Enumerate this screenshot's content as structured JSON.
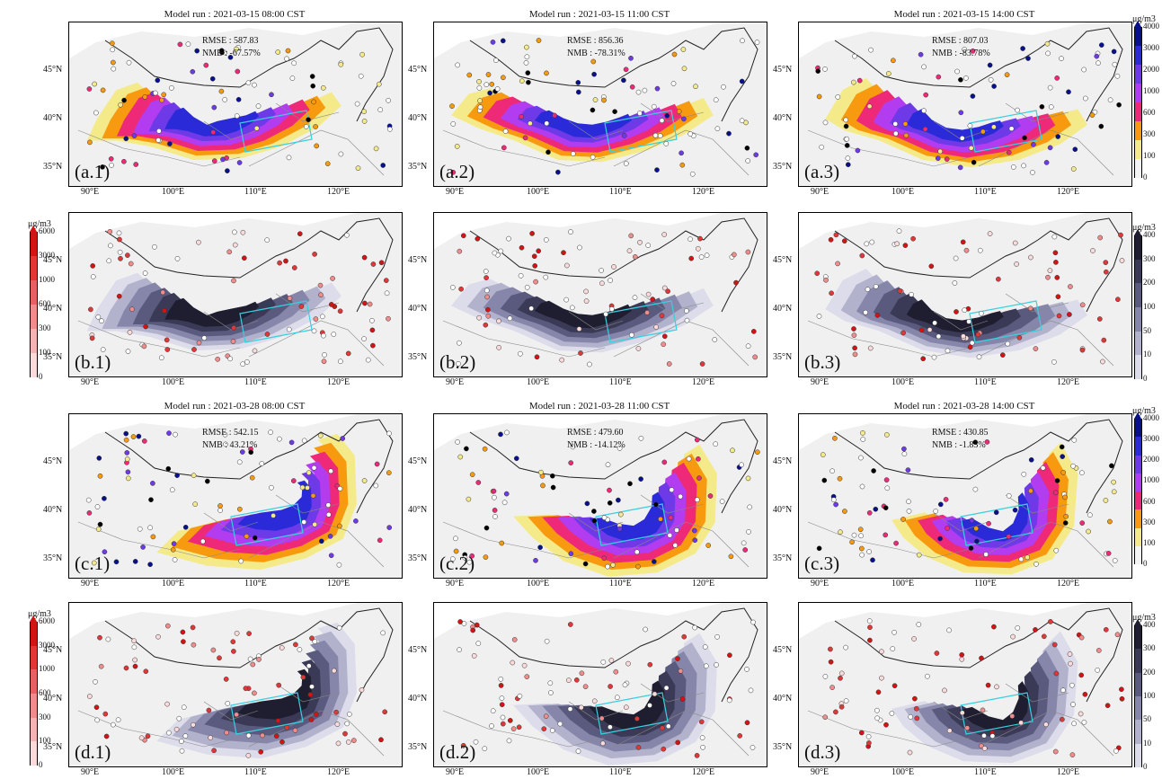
{
  "rows": [
    {
      "id": "a",
      "kind": "conc",
      "titles": [
        "Model run : 2021-03-15 08:00 CST",
        "Model run : 2021-03-15 11:00 CST",
        "Model run : 2021-03-15 14:00 CST"
      ],
      "tags": [
        "(a.1)",
        "(a.2)",
        "(a.3)"
      ],
      "rmse": [
        "RMSE : 587.83",
        "RMSE : 856.36",
        "RMSE : 807.03"
      ],
      "nmb": [
        "NMB : -67.57%",
        "NMB : -78.31%",
        "NMB : -83.78%"
      ]
    },
    {
      "id": "b",
      "kind": "dev",
      "titles": [
        "",
        "",
        ""
      ],
      "tags": [
        "(b.1)",
        "(b.2)",
        "(b.3)"
      ],
      "rmse": [
        "",
        "",
        ""
      ],
      "nmb": [
        "",
        "",
        ""
      ]
    },
    {
      "id": "c",
      "kind": "conc",
      "titles": [
        "Model run : 2021-03-28 08:00 CST",
        "Model run : 2021-03-28 11:00 CST",
        "Model run : 2021-03-28 14:00 CST"
      ],
      "tags": [
        "(c.1)",
        "(c.2)",
        "(c.3)"
      ],
      "rmse": [
        "RMSE : 542.15",
        "RMSE : 479.60",
        "RMSE : 430.85"
      ],
      "nmb": [
        "NMB : 43.21%",
        "NMB : -14.12%",
        "NMB : -1.83%"
      ]
    },
    {
      "id": "d",
      "kind": "dev",
      "titles": [
        "",
        "",
        ""
      ],
      "tags": [
        "(d.1)",
        "(d.2)",
        "(d.3)"
      ],
      "rmse": [
        "",
        "",
        ""
      ],
      "nmb": [
        "",
        "",
        ""
      ]
    }
  ],
  "latitude_labels": [
    "45°N",
    "40°N",
    "35°N"
  ],
  "longitude_labels": [
    "90°E",
    "100°E",
    "110°E",
    "120°E"
  ],
  "colorbars": {
    "concentration": {
      "unit": "μg/m3",
      "ticks": [
        "4000",
        "3000",
        "2000",
        "1000",
        "600",
        "300",
        "100",
        "0"
      ],
      "colors": [
        "#08108a",
        "#2a2ad8",
        "#6e3ae8",
        "#b23cf0",
        "#ee2a78",
        "#f89a10",
        "#f4ea8a",
        "#f4f4f4"
      ]
    },
    "deviation": {
      "unit": "μg/m3",
      "ticks": [
        "400",
        "300",
        "200",
        "100",
        "50",
        "10",
        "0"
      ],
      "colors": [
        "#1e1e30",
        "#3a3a56",
        "#5a5a7e",
        "#8686aa",
        "#b2b2cc",
        "#dcdcea"
      ]
    },
    "obs_error": {
      "unit": "μg/m3",
      "ticks": [
        "6000",
        "3000",
        "1000",
        "600",
        "300",
        "100",
        "0"
      ],
      "colors": [
        "#d21414",
        "#e03838",
        "#ea6060",
        "#f08c8c",
        "#f4b4b4",
        "#fadada"
      ]
    }
  },
  "colors": {
    "background": "#f0f0f0",
    "border_lines": "#222222",
    "province_lines": "#888888",
    "study_box": "#38d0e0"
  }
}
